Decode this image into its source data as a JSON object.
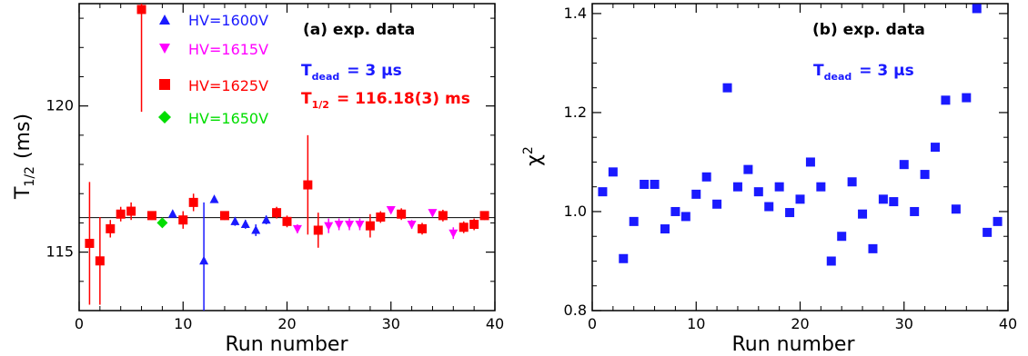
{
  "colors": {
    "hv1600": "#1a1aff",
    "hv1615": "#ff00ff",
    "hv1625": "#ff0000",
    "hv1650": "#00dd00",
    "chi": "#1a1aff",
    "fit": "#000000"
  },
  "chart_data": [
    {
      "type": "scatter",
      "panel_label": "(a) exp. data",
      "xlabel": "Run number",
      "ylabel_main": "T",
      "ylabel_sub": "1/2",
      "ylabel_unit": "(ms)",
      "xlim": [
        0,
        40
      ],
      "ylim": [
        113,
        123.5
      ],
      "xticks": [
        "0",
        "10",
        "20",
        "30",
        "40"
      ],
      "yticks": [
        "115",
        "120"
      ],
      "grid": false,
      "legend_position": "top-left",
      "annotation_tdead_main": "T",
      "annotation_tdead_sub": "dead",
      "annotation_tdead_value": "= 3 μs",
      "annotation_thalf_main": "T",
      "annotation_thalf_sub": "1/2",
      "annotation_thalf_value": "= 116.18(3) ms",
      "fit_value": 116.18,
      "series": [
        {
          "name": "HV=1600V",
          "marker": "triangle-up",
          "color_key": "hv1600",
          "points": [
            {
              "x": 9,
              "y": 116.3,
              "err": 0.1
            },
            {
              "x": 12,
              "y": 114.7,
              "err": 2.0
            },
            {
              "x": 13,
              "y": 116.8,
              "err": 0.1
            },
            {
              "x": 15,
              "y": 116.05,
              "err": 0.15
            },
            {
              "x": 16,
              "y": 115.95,
              "err": 0.15
            },
            {
              "x": 17,
              "y": 115.75,
              "err": 0.2
            },
            {
              "x": 18,
              "y": 116.1,
              "err": 0.15
            }
          ]
        },
        {
          "name": "HV=1615V",
          "marker": "triangle-down",
          "color_key": "hv1615",
          "points": [
            {
              "x": 21,
              "y": 115.8,
              "err": 0.15
            },
            {
              "x": 24,
              "y": 115.9,
              "err": 0.25
            },
            {
              "x": 25,
              "y": 115.95,
              "err": 0.2
            },
            {
              "x": 26,
              "y": 115.95,
              "err": 0.2
            },
            {
              "x": 27,
              "y": 115.95,
              "err": 0.2
            },
            {
              "x": 30,
              "y": 116.45,
              "err": 0.1
            },
            {
              "x": 32,
              "y": 115.95,
              "err": 0.15
            },
            {
              "x": 34,
              "y": 116.35,
              "err": 0.1
            },
            {
              "x": 36,
              "y": 115.65,
              "err": 0.2
            }
          ]
        },
        {
          "name": "HV=1625V",
          "marker": "square",
          "color_key": "hv1625",
          "points": [
            {
              "x": 1,
              "y": 115.3,
              "err": 2.1
            },
            {
              "x": 2,
              "y": 114.7,
              "err": 1.5
            },
            {
              "x": 3,
              "y": 115.8,
              "err": 0.3
            },
            {
              "x": 4,
              "y": 116.3,
              "err": 0.25
            },
            {
              "x": 5,
              "y": 116.4,
              "err": 0.3
            },
            {
              "x": 6,
              "y": 123.3,
              "err": 3.5
            },
            {
              "x": 7,
              "y": 116.25,
              "err": 0.15
            },
            {
              "x": 10,
              "y": 116.1,
              "err": 0.3
            },
            {
              "x": 11,
              "y": 116.7,
              "err": 0.3
            },
            {
              "x": 14,
              "y": 116.25,
              "err": 0.15
            },
            {
              "x": 19,
              "y": 116.35,
              "err": 0.2
            },
            {
              "x": 20,
              "y": 116.05,
              "err": 0.2
            },
            {
              "x": 22,
              "y": 117.3,
              "err": 1.7
            },
            {
              "x": 23,
              "y": 115.75,
              "err": 0.6
            },
            {
              "x": 28,
              "y": 115.9,
              "err": 0.4
            },
            {
              "x": 29,
              "y": 116.2,
              "err": 0.2
            },
            {
              "x": 31,
              "y": 116.3,
              "err": 0.2
            },
            {
              "x": 33,
              "y": 115.8,
              "err": 0.2
            },
            {
              "x": 35,
              "y": 116.25,
              "err": 0.2
            },
            {
              "x": 37,
              "y": 115.85,
              "err": 0.2
            },
            {
              "x": 38,
              "y": 115.95,
              "err": 0.2
            },
            {
              "x": 39,
              "y": 116.25,
              "err": 0.15
            }
          ]
        },
        {
          "name": "HV=1650V",
          "marker": "diamond",
          "color_key": "hv1650",
          "points": [
            {
              "x": 8,
              "y": 116.0,
              "err": 0.15
            }
          ]
        }
      ]
    },
    {
      "type": "scatter",
      "panel_label": "(b) exp. data",
      "xlabel": "Run number",
      "ylabel_main": "χ",
      "ylabel_sup": "2",
      "xlim": [
        0,
        40
      ],
      "ylim": [
        0.8,
        1.42
      ],
      "xticks": [
        "0",
        "10",
        "20",
        "30",
        "40"
      ],
      "yticks": [
        "0.8",
        "1.0",
        "1.2",
        "1.4"
      ],
      "grid": false,
      "annotation_tdead_main": "T",
      "annotation_tdead_sub": "dead",
      "annotation_tdead_value": "= 3 μs",
      "series": [
        {
          "marker": "square",
          "color_key": "chi",
          "x": [
            1,
            2,
            3,
            4,
            5,
            6,
            7,
            8,
            9,
            10,
            11,
            12,
            13,
            14,
            15,
            16,
            17,
            18,
            19,
            20,
            21,
            22,
            23,
            24,
            25,
            26,
            27,
            28,
            29,
            30,
            31,
            32,
            33,
            34,
            35,
            36,
            37,
            38,
            39
          ],
          "y": [
            1.04,
            1.08,
            0.905,
            0.98,
            1.055,
            1.055,
            0.965,
            1.0,
            0.99,
            1.035,
            1.07,
            1.015,
            1.25,
            1.05,
            1.085,
            1.04,
            1.01,
            1.05,
            0.998,
            1.025,
            1.1,
            1.05,
            0.9,
            0.95,
            1.06,
            0.995,
            0.925,
            1.025,
            1.02,
            1.095,
            1.0,
            1.075,
            1.13,
            1.225,
            1.005,
            1.23,
            1.41,
            0.958,
            0.98
          ]
        }
      ]
    }
  ]
}
